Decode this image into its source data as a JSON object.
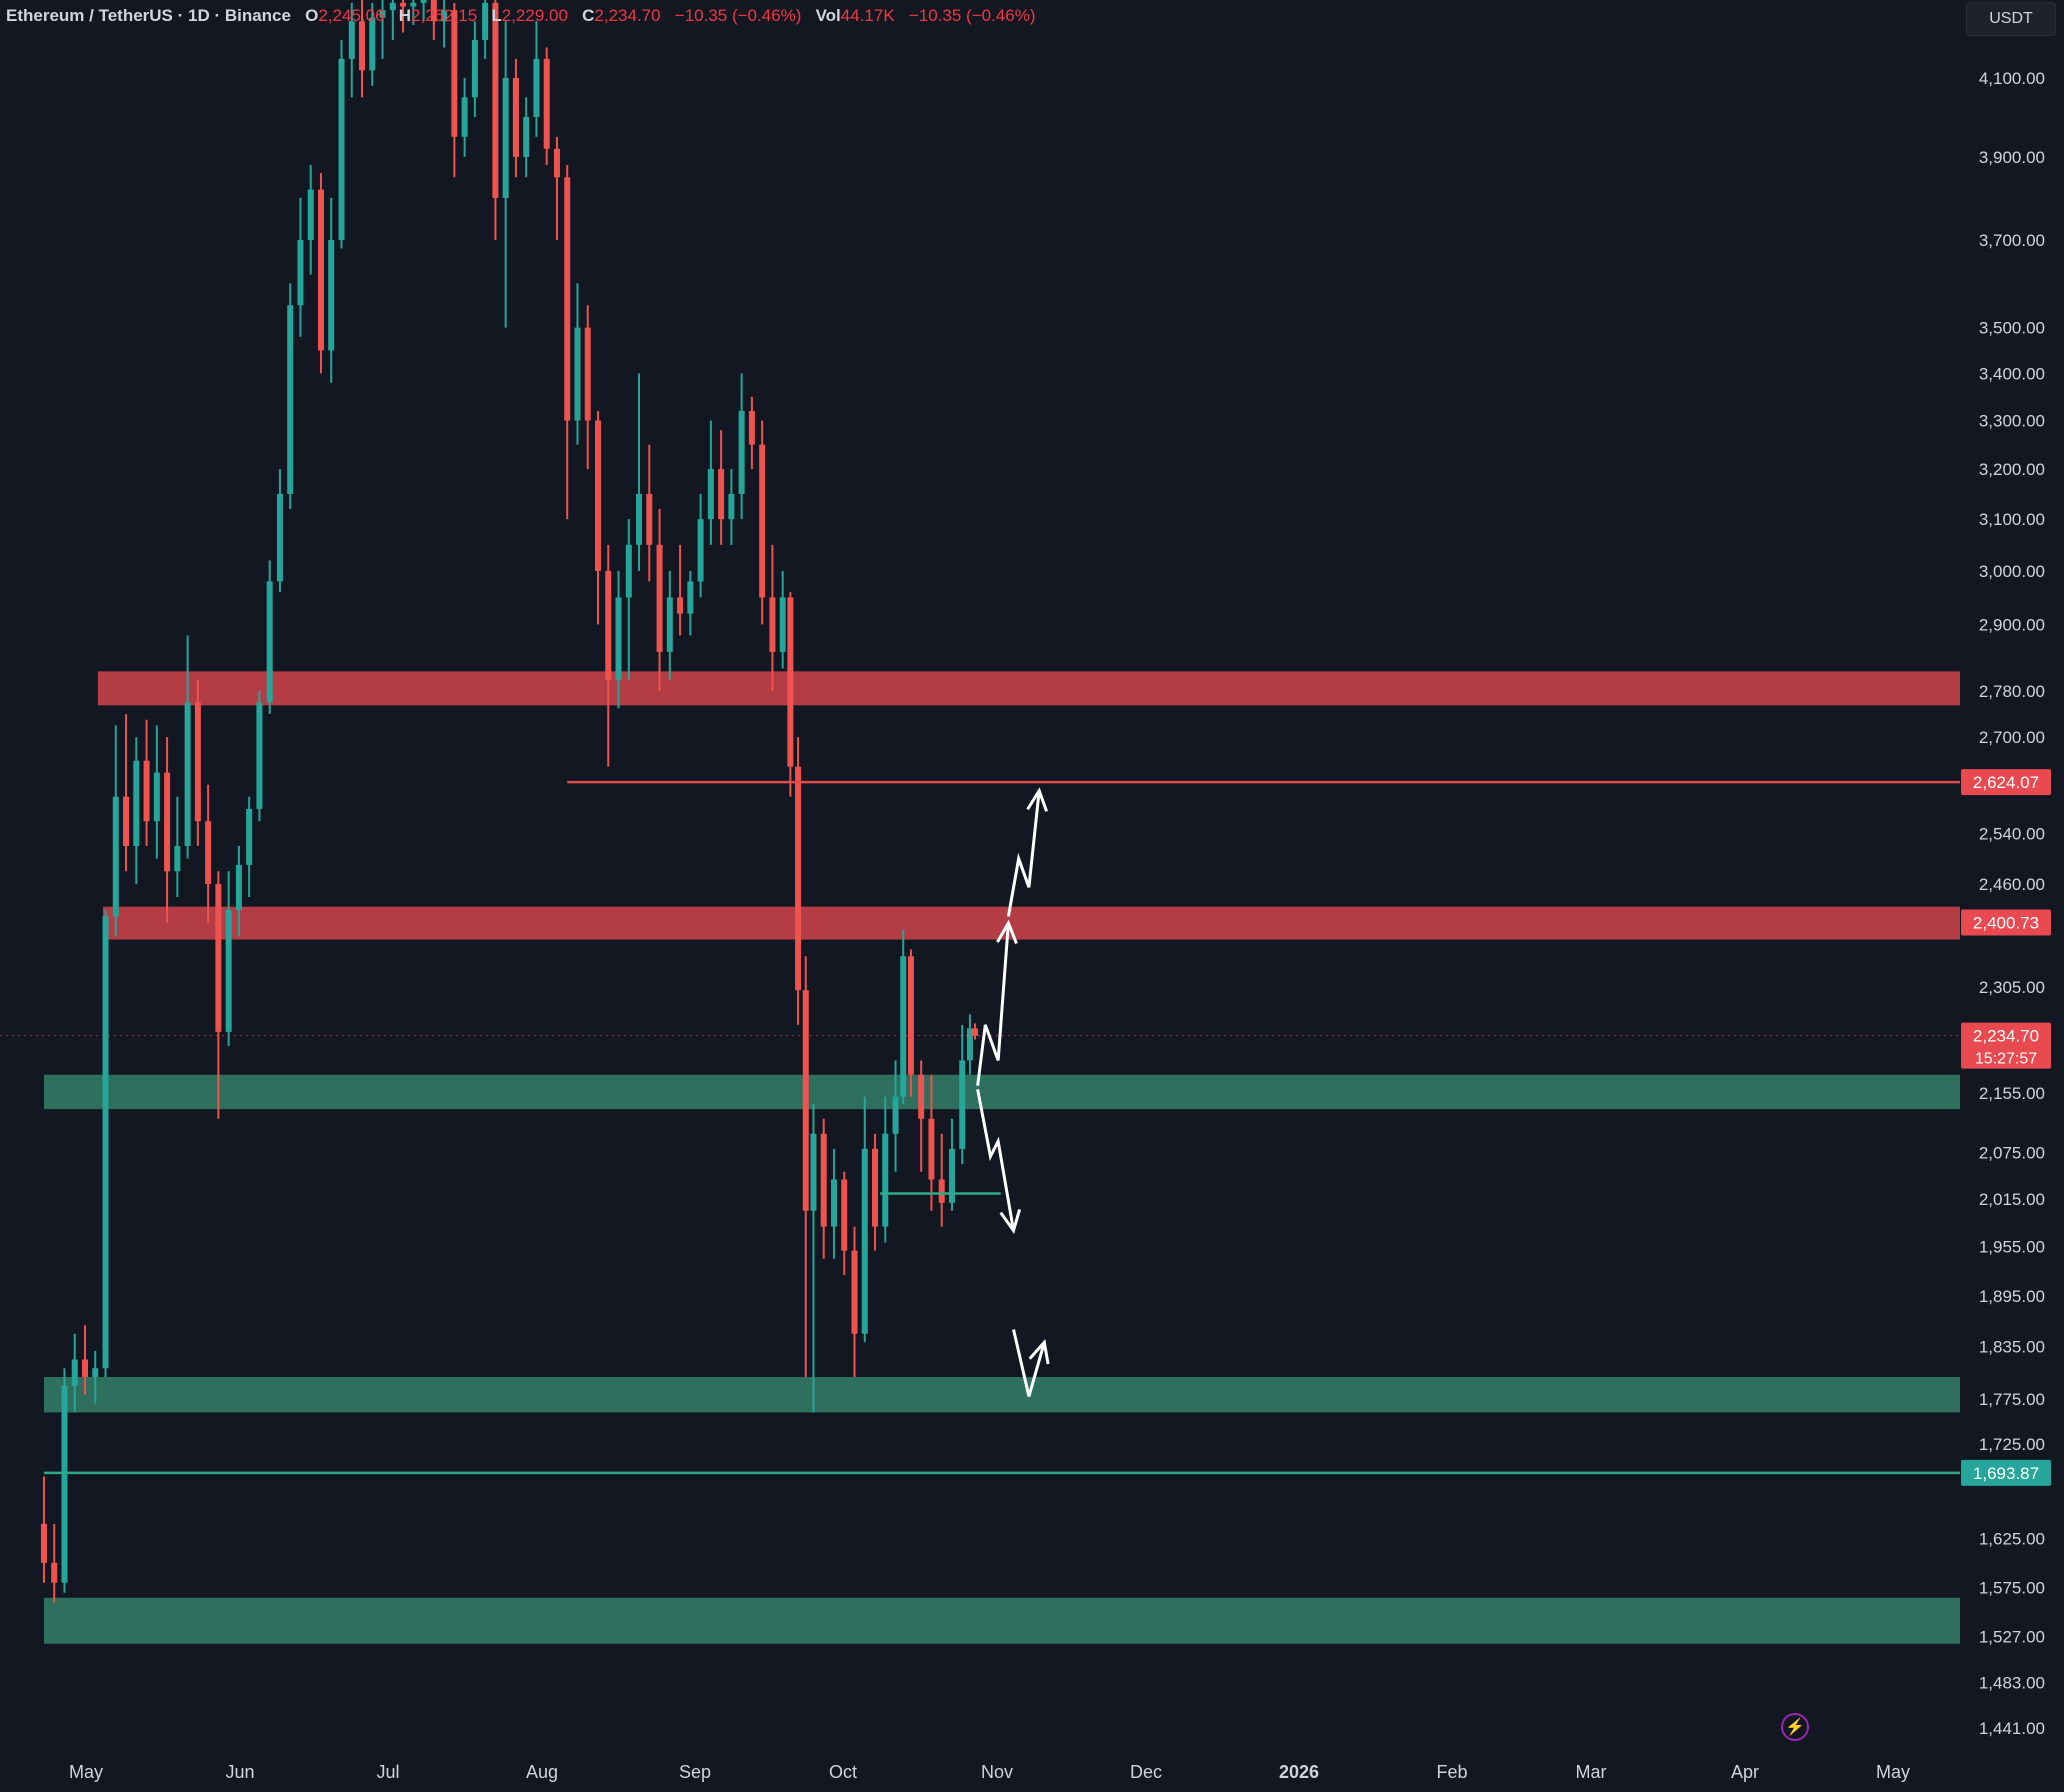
{
  "legend": {
    "symbol": "Ethereum / TetherUS · 1D · Binance",
    "open_label": "O",
    "open": "2,245.06",
    "high_label": "H",
    "high": "2,252.15",
    "low_label": "L",
    "low": "2,229.00",
    "close_label": "C",
    "close": "2,234.70",
    "change": "−10.35 (−0.46%)",
    "vol_label": "Vol",
    "vol": "44.17K",
    "vol_change": "−10.35 (−0.46%)"
  },
  "currency": "USDT",
  "lightning_icon": "lightning-icon",
  "colors": {
    "background": "#131722",
    "up": "#26a69a",
    "down": "#ef5350",
    "resistance_zone": "#b43c45",
    "support_zone": "#2e6f5e",
    "resistance_line": "#e04b4b",
    "support_line": "#2ea98a",
    "arrow": "#ffffff"
  },
  "chart_data": {
    "type": "candlestick",
    "title": "Ethereum / TetherUS · 1D · Binance",
    "y_ticks": [
      "4,100.00",
      "3,900.00",
      "3,700.00",
      "3,500.00",
      "3,400.00",
      "3,300.00",
      "3,200.00",
      "3,100.00",
      "3,000.00",
      "2,900.00",
      "2,780.00",
      "2,700.00",
      "2,540.00",
      "2,460.00",
      "2,305.00",
      "2,155.00",
      "2,075.00",
      "2,015.00",
      "1,955.00",
      "1,895.00",
      "1,835.00",
      "1,775.00",
      "1,725.00",
      "1,625.00",
      "1,575.00",
      "1,527.00",
      "1,483.00",
      "1,441.00"
    ],
    "x_ticks": [
      "May",
      "Jun",
      "Jul",
      "Aug",
      "Sep",
      "Oct",
      "Nov",
      "Dec",
      "2026",
      "Feb",
      "Mar",
      "Apr",
      "May"
    ],
    "price_labels": [
      {
        "text": "2,624.07",
        "kind": "resistance",
        "price": 2624.07
      },
      {
        "text": "2,400.73",
        "kind": "resistance",
        "price": 2400.73
      },
      {
        "text": "2,234.70",
        "countdown": "15:27:57",
        "kind": "last",
        "price": 2234.7
      },
      {
        "text": "1,693.87",
        "kind": "support",
        "price": 1693.87
      }
    ],
    "zones": [
      {
        "kind": "resistance",
        "from": 2755,
        "to": 2815,
        "start": "2025-05-06"
      },
      {
        "kind": "resistance",
        "from": 2375,
        "to": 2425,
        "start": "2025-05-08"
      },
      {
        "kind": "support",
        "from": 2133,
        "to": 2180,
        "start": "2025-04-15"
      },
      {
        "kind": "support",
        "from": 1760,
        "to": 1800,
        "start": "2025-04-15"
      },
      {
        "kind": "support",
        "from": 1520,
        "to": 1565,
        "start": "2025-04-15"
      }
    ],
    "lines": [
      {
        "kind": "resistance",
        "price": 2624.07,
        "start": "2025-11-05"
      },
      {
        "kind": "support",
        "price": 1693.87,
        "start": "2025-04-15"
      },
      {
        "kind": "support",
        "price": 2022,
        "start": "2026-03-07",
        "end": "2026-04-23"
      }
    ],
    "candles": [
      {
        "d": "2025-04-15",
        "o": 1640,
        "h": 1690,
        "l": 1580,
        "c": 1600
      },
      {
        "d": "2025-04-19",
        "o": 1600,
        "h": 1640,
        "l": 1560,
        "c": 1580
      },
      {
        "d": "2025-04-23",
        "o": 1580,
        "h": 1810,
        "l": 1570,
        "c": 1790
      },
      {
        "d": "2025-04-27",
        "o": 1790,
        "h": 1850,
        "l": 1760,
        "c": 1820
      },
      {
        "d": "2025-05-01",
        "o": 1820,
        "h": 1860,
        "l": 1780,
        "c": 1800
      },
      {
        "d": "2025-05-05",
        "o": 1800,
        "h": 1830,
        "l": 1770,
        "c": 1810
      },
      {
        "d": "2025-05-09",
        "o": 1810,
        "h": 2420,
        "l": 1800,
        "c": 2410
      },
      {
        "d": "2025-05-13",
        "o": 2410,
        "h": 2720,
        "l": 2380,
        "c": 2600
      },
      {
        "d": "2025-05-17",
        "o": 2600,
        "h": 2740,
        "l": 2480,
        "c": 2520
      },
      {
        "d": "2025-05-21",
        "o": 2520,
        "h": 2700,
        "l": 2460,
        "c": 2660
      },
      {
        "d": "2025-05-25",
        "o": 2660,
        "h": 2730,
        "l": 2520,
        "c": 2560
      },
      {
        "d": "2025-05-29",
        "o": 2560,
        "h": 2720,
        "l": 2500,
        "c": 2640
      },
      {
        "d": "2025-06-02",
        "o": 2640,
        "h": 2700,
        "l": 2400,
        "c": 2480
      },
      {
        "d": "2025-06-06",
        "o": 2480,
        "h": 2600,
        "l": 2440,
        "c": 2520
      },
      {
        "d": "2025-06-10",
        "o": 2520,
        "h": 2880,
        "l": 2500,
        "c": 2760
      },
      {
        "d": "2025-06-14",
        "o": 2760,
        "h": 2800,
        "l": 2520,
        "c": 2560
      },
      {
        "d": "2025-06-18",
        "o": 2560,
        "h": 2620,
        "l": 2400,
        "c": 2460
      },
      {
        "d": "2025-06-22",
        "o": 2460,
        "h": 2480,
        "l": 2120,
        "c": 2240
      },
      {
        "d": "2025-06-26",
        "o": 2240,
        "h": 2480,
        "l": 2220,
        "c": 2420
      },
      {
        "d": "2025-06-30",
        "o": 2420,
        "h": 2520,
        "l": 2380,
        "c": 2490
      },
      {
        "d": "2025-07-04",
        "o": 2490,
        "h": 2600,
        "l": 2440,
        "c": 2580
      },
      {
        "d": "2025-07-08",
        "o": 2580,
        "h": 2780,
        "l": 2560,
        "c": 2760
      },
      {
        "d": "2025-07-12",
        "o": 2760,
        "h": 3020,
        "l": 2740,
        "c": 2980
      },
      {
        "d": "2025-07-16",
        "o": 2980,
        "h": 3200,
        "l": 2960,
        "c": 3150
      },
      {
        "d": "2025-07-20",
        "o": 3150,
        "h": 3600,
        "l": 3120,
        "c": 3550
      },
      {
        "d": "2025-07-24",
        "o": 3550,
        "h": 3800,
        "l": 3480,
        "c": 3700
      },
      {
        "d": "2025-07-28",
        "o": 3700,
        "h": 3880,
        "l": 3620,
        "c": 3820
      },
      {
        "d": "2025-08-01",
        "o": 3820,
        "h": 3860,
        "l": 3400,
        "c": 3450
      },
      {
        "d": "2025-08-05",
        "o": 3450,
        "h": 3800,
        "l": 3380,
        "c": 3700
      },
      {
        "d": "2025-08-09",
        "o": 3700,
        "h": 4200,
        "l": 3680,
        "c": 4150
      },
      {
        "d": "2025-08-13",
        "o": 4150,
        "h": 4300,
        "l": 4050,
        "c": 4250
      },
      {
        "d": "2025-08-17",
        "o": 4250,
        "h": 4320,
        "l": 4050,
        "c": 4120
      },
      {
        "d": "2025-08-21",
        "o": 4120,
        "h": 4300,
        "l": 4080,
        "c": 4260
      },
      {
        "d": "2025-08-25",
        "o": 4260,
        "h": 4320,
        "l": 4150,
        "c": 4280
      },
      {
        "d": "2025-08-29",
        "o": 4280,
        "h": 4320,
        "l": 4200,
        "c": 4300
      },
      {
        "d": "2025-09-02",
        "o": 4300,
        "h": 4320,
        "l": 4220,
        "c": 4290
      },
      {
        "d": "2025-09-06",
        "o": 4290,
        "h": 4320,
        "l": 4240,
        "c": 4300
      },
      {
        "d": "2025-09-10",
        "o": 4300,
        "h": 4320,
        "l": 4250,
        "c": 4310
      },
      {
        "d": "2025-09-14",
        "o": 4310,
        "h": 4320,
        "l": 4200,
        "c": 4250
      },
      {
        "d": "2025-09-18",
        "o": 4250,
        "h": 4320,
        "l": 4180,
        "c": 4280
      },
      {
        "d": "2025-09-22",
        "o": 4280,
        "h": 4300,
        "l": 3850,
        "c": 3950
      },
      {
        "d": "2025-09-26",
        "o": 3950,
        "h": 4100,
        "l": 3900,
        "c": 4050
      },
      {
        "d": "2025-09-30",
        "o": 4050,
        "h": 4250,
        "l": 4000,
        "c": 4200
      },
      {
        "d": "2025-10-04",
        "o": 4200,
        "h": 4320,
        "l": 4150,
        "c": 4300
      },
      {
        "d": "2025-10-08",
        "o": 4300,
        "h": 4320,
        "l": 3700,
        "c": 3800
      },
      {
        "d": "2025-10-12",
        "o": 3800,
        "h": 4250,
        "l": 3500,
        "c": 4100
      },
      {
        "d": "2025-10-16",
        "o": 4100,
        "h": 4150,
        "l": 3850,
        "c": 3900
      },
      {
        "d": "2025-10-20",
        "o": 3900,
        "h": 4050,
        "l": 3850,
        "c": 4000
      },
      {
        "d": "2025-10-24",
        "o": 4000,
        "h": 4250,
        "l": 3950,
        "c": 4150
      },
      {
        "d": "2025-10-28",
        "o": 4150,
        "h": 4180,
        "l": 3880,
        "c": 3920
      },
      {
        "d": "2025-11-01",
        "o": 3920,
        "h": 3950,
        "l": 3700,
        "c": 3850
      },
      {
        "d": "2025-11-05",
        "o": 3850,
        "h": 3880,
        "l": 3100,
        "c": 3300
      },
      {
        "d": "2025-11-09",
        "o": 3300,
        "h": 3600,
        "l": 3250,
        "c": 3500
      },
      {
        "d": "2025-11-13",
        "o": 3500,
        "h": 3550,
        "l": 3200,
        "c": 3300
      },
      {
        "d": "2025-11-17",
        "o": 3300,
        "h": 3320,
        "l": 2900,
        "c": 3000
      },
      {
        "d": "2025-11-21",
        "o": 3000,
        "h": 3050,
        "l": 2650,
        "c": 2800
      },
      {
        "d": "2025-11-25",
        "o": 2800,
        "h": 3000,
        "l": 2750,
        "c": 2950
      },
      {
        "d": "2025-11-29",
        "o": 2950,
        "h": 3100,
        "l": 2800,
        "c": 3050
      },
      {
        "d": "2025-12-03",
        "o": 3050,
        "h": 3400,
        "l": 3000,
        "c": 3150
      },
      {
        "d": "2025-12-07",
        "o": 3150,
        "h": 3250,
        "l": 2980,
        "c": 3050
      },
      {
        "d": "2025-12-11",
        "o": 3050,
        "h": 3120,
        "l": 2780,
        "c": 2850
      },
      {
        "d": "2025-12-15",
        "o": 2850,
        "h": 3000,
        "l": 2800,
        "c": 2950
      },
      {
        "d": "2025-12-19",
        "o": 2950,
        "h": 3050,
        "l": 2880,
        "c": 2920
      },
      {
        "d": "2025-12-23",
        "o": 2920,
        "h": 3000,
        "l": 2880,
        "c": 2980
      },
      {
        "d": "2025-12-27",
        "o": 2980,
        "h": 3150,
        "l": 2950,
        "c": 3100
      },
      {
        "d": "2025-12-31",
        "o": 3100,
        "h": 3300,
        "l": 3050,
        "c": 3200
      },
      {
        "d": "2026-01-04",
        "o": 3200,
        "h": 3280,
        "l": 3050,
        "c": 3100
      },
      {
        "d": "2026-01-08",
        "o": 3100,
        "h": 3200,
        "l": 3050,
        "c": 3150
      },
      {
        "d": "2026-01-12",
        "o": 3150,
        "h": 3400,
        "l": 3100,
        "c": 3320
      },
      {
        "d": "2026-01-16",
        "o": 3320,
        "h": 3350,
        "l": 3200,
        "c": 3250
      },
      {
        "d": "2026-01-20",
        "o": 3250,
        "h": 3300,
        "l": 2900,
        "c": 2950
      },
      {
        "d": "2026-01-24",
        "o": 2950,
        "h": 3050,
        "l": 2780,
        "c": 2850
      },
      {
        "d": "2026-01-28",
        "o": 2850,
        "h": 3000,
        "l": 2820,
        "c": 2950
      },
      {
        "d": "2026-01-31",
        "o": 2950,
        "h": 2960,
        "l": 2600,
        "c": 2650
      },
      {
        "d": "2026-02-03",
        "o": 2650,
        "h": 2700,
        "l": 2250,
        "c": 2300
      },
      {
        "d": "2026-02-06",
        "o": 2300,
        "h": 2350,
        "l": 1800,
        "c": 2000
      },
      {
        "d": "2026-02-09",
        "o": 2000,
        "h": 2140,
        "l": 1760,
        "c": 2100
      },
      {
        "d": "2026-02-13",
        "o": 2100,
        "h": 2120,
        "l": 1940,
        "c": 1980
      },
      {
        "d": "2026-02-17",
        "o": 1980,
        "h": 2080,
        "l": 1940,
        "c": 2040
      },
      {
        "d": "2026-02-21",
        "o": 2040,
        "h": 2050,
        "l": 1920,
        "c": 1950
      },
      {
        "d": "2026-02-25",
        "o": 1950,
        "h": 1980,
        "l": 1800,
        "c": 1850
      },
      {
        "d": "2026-03-01",
        "o": 1850,
        "h": 2150,
        "l": 1840,
        "c": 2080
      },
      {
        "d": "2026-03-05",
        "o": 2080,
        "h": 2100,
        "l": 1950,
        "c": 1980
      },
      {
        "d": "2026-03-09",
        "o": 1980,
        "h": 2150,
        "l": 1960,
        "c": 2100
      },
      {
        "d": "2026-03-13",
        "o": 2100,
        "h": 2200,
        "l": 2050,
        "c": 2150
      },
      {
        "d": "2026-03-16",
        "o": 2150,
        "h": 2390,
        "l": 2140,
        "c": 2350
      },
      {
        "d": "2026-03-19",
        "o": 2350,
        "h": 2360,
        "l": 2150,
        "c": 2180
      },
      {
        "d": "2026-03-23",
        "o": 2180,
        "h": 2200,
        "l": 2050,
        "c": 2120
      },
      {
        "d": "2026-03-27",
        "o": 2120,
        "h": 2180,
        "l": 2000,
        "c": 2040
      },
      {
        "d": "2026-03-31",
        "o": 2040,
        "h": 2100,
        "l": 1980,
        "c": 2010
      },
      {
        "d": "2026-04-04",
        "o": 2010,
        "h": 2120,
        "l": 2000,
        "c": 2080
      },
      {
        "d": "2026-04-08",
        "o": 2080,
        "h": 2250,
        "l": 2060,
        "c": 2200
      },
      {
        "d": "2026-04-11",
        "o": 2200,
        "h": 2265,
        "l": 2180,
        "c": 2245
      },
      {
        "d": "2026-04-13",
        "o": 2245.06,
        "h": 2252.15,
        "l": 2229,
        "c": 2234.7
      }
    ],
    "scenario_arrows": [
      [
        [
          "2026-04-14",
          2165
        ],
        [
          "2026-04-17",
          2250
        ],
        [
          "2026-04-22",
          2200
        ],
        [
          "2026-04-26",
          2400
        ]
      ],
      [
        [
          "2026-04-26",
          2410
        ],
        [
          "2026-04-30",
          2500
        ],
        [
          "2026-05-04",
          2455
        ],
        [
          "2026-05-08",
          2610
        ]
      ],
      [
        [
          "2026-04-14",
          2160
        ],
        [
          "2026-04-19",
          2070
        ],
        [
          "2026-04-22",
          2090
        ],
        [
          "2026-04-28",
          1975
        ]
      ],
      [
        [
          "2026-04-28",
          1855
        ],
        [
          "2026-05-04",
          1778
        ],
        [
          "2026-05-10",
          1840
        ]
      ]
    ]
  }
}
